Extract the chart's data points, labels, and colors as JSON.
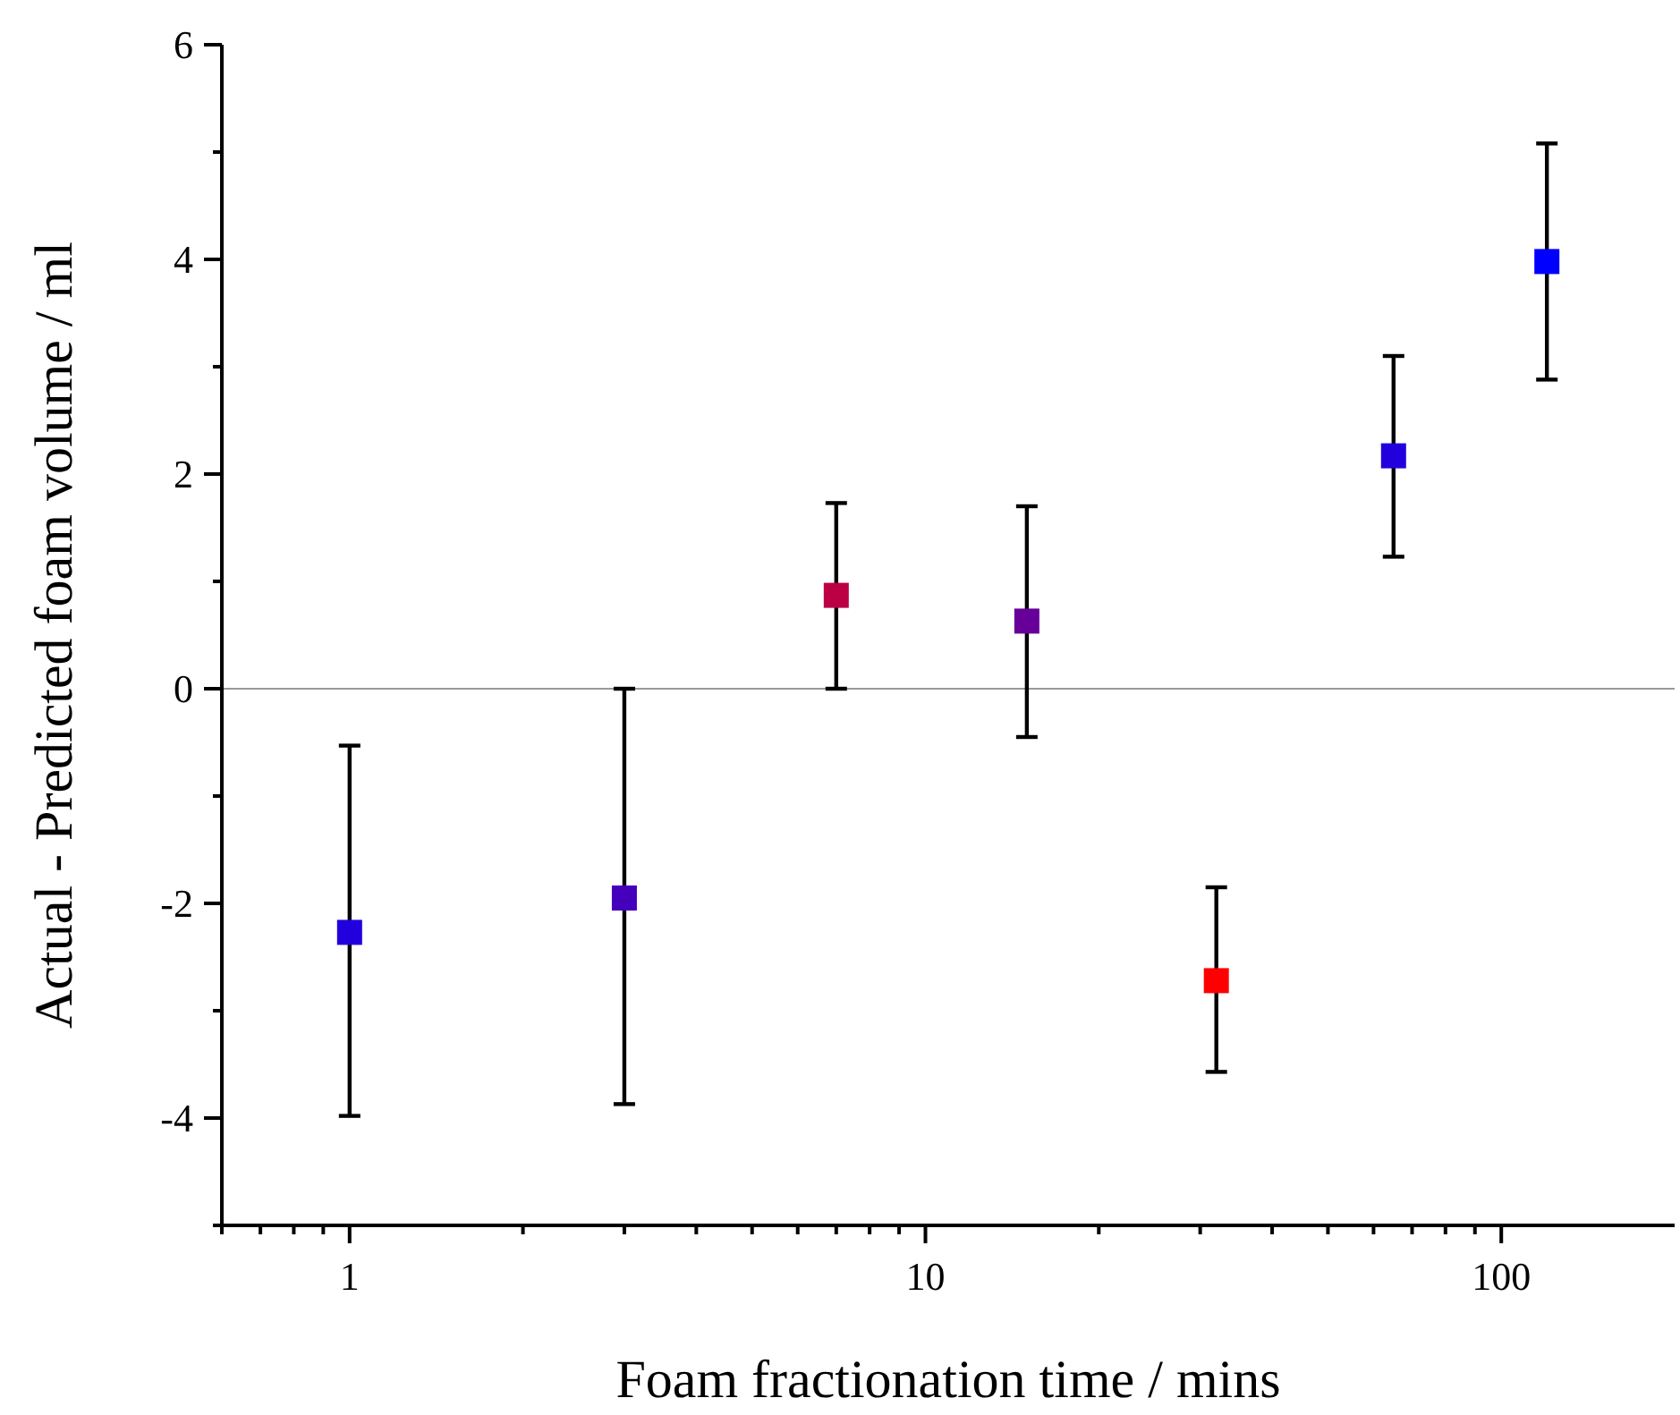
{
  "chart_data": {
    "type": "scatter",
    "xlabel": "Foam fractionation time / mins",
    "ylabel": "Actual - Predicted foam volume / ml",
    "log": "x",
    "marker": "square",
    "grid": false,
    "xlim": [
      0.6,
      200
    ],
    "ylim": [
      -5,
      6
    ],
    "xticks": [
      {
        "value": 0.6,
        "label": null
      },
      {
        "value": 0.7,
        "label": null
      },
      {
        "value": 0.8,
        "label": null
      },
      {
        "value": 0.9,
        "label": null
      },
      1,
      {
        "value": 2,
        "label": null
      },
      {
        "value": 3,
        "label": null
      },
      {
        "value": 4,
        "label": null
      },
      {
        "value": 5,
        "label": null
      },
      {
        "value": 6,
        "label": null
      },
      {
        "value": 7,
        "label": null
      },
      {
        "value": 8,
        "label": null
      },
      {
        "value": 9,
        "label": null
      },
      10,
      {
        "value": 20,
        "label": null
      },
      {
        "value": 30,
        "label": null
      },
      {
        "value": 40,
        "label": null
      },
      {
        "value": 50,
        "label": null
      },
      {
        "value": 60,
        "label": null
      },
      {
        "value": 70,
        "label": null
      },
      {
        "value": 80,
        "label": null
      },
      {
        "value": 90,
        "label": null
      },
      100
    ],
    "yticks": [
      {
        "value": -5,
        "label": null
      },
      -4,
      {
        "value": -3,
        "label": null
      },
      -2,
      {
        "value": -1,
        "label": null
      },
      0,
      {
        "value": 1,
        "label": null
      },
      2,
      {
        "value": 3,
        "label": null
      },
      4,
      {
        "value": 5,
        "label": null
      },
      6
    ],
    "x": [
      1,
      3,
      7,
      15,
      32,
      65,
      120
    ],
    "values": [
      -2.27,
      -1.95,
      0.87,
      0.63,
      -2.72,
      2.17,
      3.98
    ],
    "errors": [
      [
        -3.98,
        -0.53
      ],
      [
        -3.87,
        0
      ],
      [
        0,
        1.73
      ],
      [
        -0.45,
        1.7
      ],
      [
        -3.57,
        -1.85
      ],
      [
        1.23,
        3.1
      ],
      [
        2.88,
        5.08
      ]
    ],
    "colors": [
      "#2200dd",
      "#4400bb",
      "#bb0044",
      "#660099",
      "#ff0000",
      "#2200dd",
      "#0000ff"
    ],
    "ref_lines": [
      {
        "axis": "y",
        "value": 0,
        "color": "#999999",
        "line_style": "solid"
      }
    ]
  }
}
